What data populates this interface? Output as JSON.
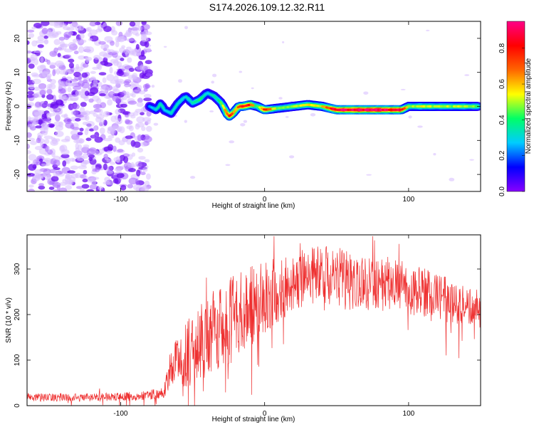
{
  "title": "S174.2026.109.12.32.R11",
  "chart_data": [
    {
      "type": "heatmap",
      "xlabel": "Height of straight line (km)",
      "ylabel": "Frequency (Hz)",
      "xlim": [
        -165,
        150
      ],
      "ylim": [
        -25,
        25
      ],
      "x_ticks": [
        -100,
        0,
        100
      ],
      "y_ticks": [
        -20,
        -10,
        0,
        10,
        20
      ],
      "colorbar": {
        "label": "Normalized spectral amplitude",
        "range": [
          0.0,
          0.95
        ],
        "ticks": [
          0.0,
          0.2,
          0.4,
          0.6,
          0.8
        ],
        "stops": [
          "#8800ff",
          "#0000ff",
          "#00ccff",
          "#00ff66",
          "#ffff00",
          "#ff6600",
          "#ff0000",
          "#ff0088"
        ]
      },
      "noise_region": {
        "x_range": [
          -165,
          -80
        ],
        "freq_range": [
          -25,
          25
        ],
        "amplitude": 0.05
      },
      "ridge": {
        "x": [
          -80,
          -75,
          -72,
          -70,
          -65,
          -60,
          -55,
          -50,
          -45,
          -40,
          -35,
          -30,
          -25,
          -22,
          -20,
          -18,
          -15,
          -10,
          -5,
          0,
          10,
          20,
          30,
          40,
          50,
          60,
          70,
          80,
          90,
          95,
          100,
          110,
          120,
          130,
          140,
          148
        ],
        "freq": [
          0,
          -1,
          1,
          -1,
          -2,
          1,
          3,
          1,
          2,
          4,
          3,
          1,
          -3,
          -2,
          -1,
          0,
          0,
          0.5,
          0,
          -1,
          -0.5,
          0,
          0.5,
          0,
          -1,
          -1,
          -1,
          -1,
          -1,
          -1,
          0,
          0,
          0,
          0,
          0,
          0
        ],
        "amplitude": [
          0.25,
          0.3,
          0.35,
          0.3,
          0.3,
          0.35,
          0.3,
          0.35,
          0.4,
          0.3,
          0.35,
          0.4,
          0.75,
          0.8,
          0.6,
          0.7,
          0.8,
          0.85,
          0.4,
          0.8,
          0.45,
          0.5,
          0.55,
          0.55,
          0.9,
          0.95,
          0.95,
          0.95,
          0.9,
          0.9,
          0.5,
          0.55,
          0.5,
          0.5,
          0.5,
          0.45
        ]
      }
    },
    {
      "type": "line",
      "xlabel": "Height of straight line (km)",
      "ylabel": "SNR (10 * v/v)",
      "xlim": [
        -165,
        150
      ],
      "ylim": [
        0,
        375
      ],
      "x_ticks": [
        -100,
        0,
        100
      ],
      "y_ticks": [
        0,
        100,
        200,
        300
      ],
      "series": [
        {
          "name": "SNR",
          "color": "#ee2f2f",
          "envelope_x": [
            -165,
            -120,
            -90,
            -70,
            -66,
            -63,
            -60,
            -55,
            -50,
            -45,
            -40,
            -30,
            -20,
            -10,
            0,
            10,
            20,
            30,
            40,
            50,
            60,
            70,
            80,
            90,
            100,
            110,
            120,
            130,
            140,
            150
          ],
          "envelope_mean": [
            18,
            18,
            20,
            28,
            80,
            95,
            100,
            110,
            125,
            135,
            150,
            175,
            195,
            215,
            240,
            255,
            270,
            285,
            290,
            285,
            275,
            270,
            268,
            270,
            255,
            250,
            240,
            228,
            215,
            210
          ],
          "envelope_spread": [
            9,
            9,
            10,
            12,
            45,
            50,
            60,
            70,
            80,
            85,
            90,
            95,
            95,
            90,
            80,
            75,
            70,
            65,
            65,
            65,
            62,
            60,
            58,
            58,
            55,
            55,
            50,
            50,
            45,
            45
          ]
        }
      ]
    }
  ]
}
